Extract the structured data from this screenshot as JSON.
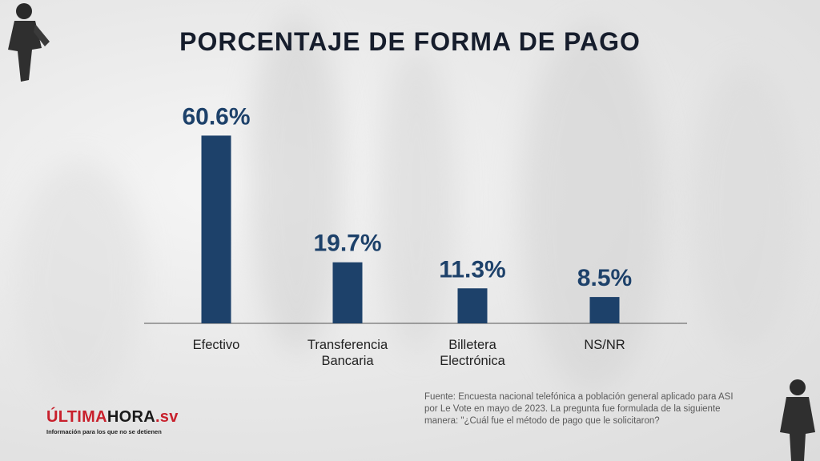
{
  "title": "PORCENTAJE DE FORMA DE PAGO",
  "chart_data": {
    "type": "bar",
    "title": "PORCENTAJE DE FORMA DE PAGO",
    "categories": [
      [
        "Efectivo"
      ],
      [
        "Transferencia",
        "Bancaria"
      ],
      [
        "Billetera",
        "Electrónica"
      ],
      [
        "NS/NR"
      ]
    ],
    "values": [
      60.6,
      19.7,
      11.3,
      8.5
    ],
    "value_labels": [
      "60.6%",
      "19.7%",
      "11.3%",
      "8.5%"
    ],
    "unit": "%",
    "ylim": [
      0,
      62
    ],
    "bar_color": "#1d416a",
    "grid": false,
    "legend": "none"
  },
  "source": "Fuente: Encuesta nacional telefónica a población general aplicado para ASI por Le Vote en mayo de 2023. La pregunta fue formulada de la siguiente manera: \"¿Cuál fue el método de pago que le solicitaron?",
  "logo": {
    "part1": "ÚLTIMA",
    "part2": "HORA",
    "part3": ".sv",
    "tagline": "Información para los que no se detienen"
  }
}
